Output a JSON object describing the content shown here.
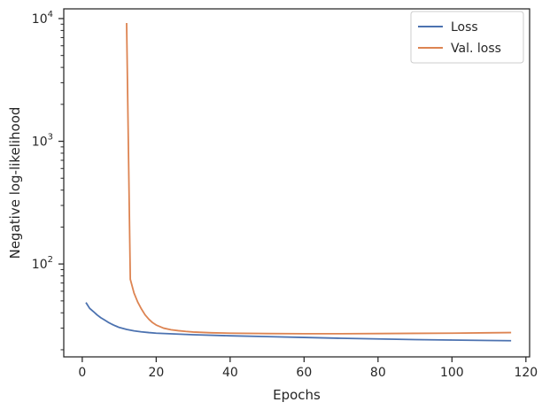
{
  "chart_data": {
    "type": "line",
    "xlabel": "Epochs",
    "ylabel": "Negative log-likelihood",
    "xlim": [
      -5,
      121
    ],
    "ylim": [
      17.5,
      12000
    ],
    "yscale": "log",
    "xticks": [
      0,
      20,
      40,
      60,
      80,
      100,
      120
    ],
    "yticks": [
      {
        "value": 100,
        "base": "10",
        "exp": "2"
      },
      {
        "value": 1000,
        "base": "10",
        "exp": "3"
      },
      {
        "value": 10000,
        "base": "10",
        "exp": "4"
      }
    ],
    "grid": false,
    "legend_position": "top-right",
    "series": [
      {
        "name": "Loss",
        "color": "#4c72b0",
        "x": [
          1,
          2,
          3,
          4,
          5,
          6,
          7,
          8,
          9,
          10,
          12,
          14,
          16,
          18,
          20,
          25,
          30,
          40,
          50,
          60,
          70,
          80,
          90,
          100,
          110,
          116
        ],
        "y": [
          48.5,
          43.5,
          41,
          38.5,
          36.5,
          35,
          33.5,
          32.3,
          31.3,
          30.4,
          29.3,
          28.5,
          28,
          27.6,
          27.3,
          26.9,
          26.5,
          26.0,
          25.6,
          25.2,
          24.8,
          24.5,
          24.2,
          24.0,
          23.8,
          23.7
        ]
      },
      {
        "name": "Val. loss",
        "color": "#dd8452",
        "x": [
          12,
          13,
          14,
          15,
          16,
          17,
          18,
          19,
          20,
          22,
          24,
          26,
          28,
          30,
          35,
          40,
          50,
          60,
          70,
          80,
          90,
          100,
          110,
          116
        ],
        "y": [
          9200,
          75,
          58,
          49,
          43,
          38.5,
          35.5,
          33.3,
          31.8,
          30.0,
          29.1,
          28.6,
          28.2,
          27.9,
          27.5,
          27.3,
          27.1,
          27.0,
          27.0,
          27.1,
          27.2,
          27.3,
          27.5,
          27.6
        ]
      }
    ]
  }
}
